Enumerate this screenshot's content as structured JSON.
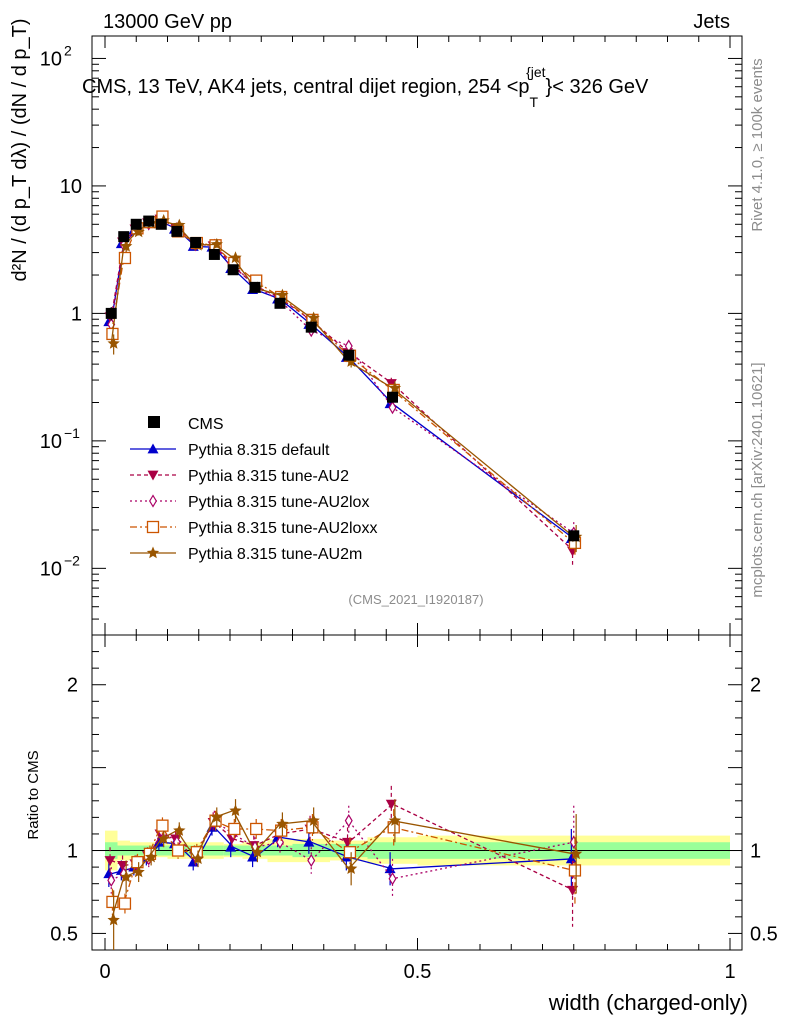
{
  "header": {
    "left": "13000 GeV pp",
    "right": "Jets"
  },
  "side_labels": {
    "rivet": "Rivet 4.1.0, ≥ 100k events",
    "mcplots": "mcplots.cern.ch [arXiv:2401.10621]"
  },
  "chart_data": {
    "type": "line",
    "title": "CMS, 13 TeV, AK4 jets, central dijet region, 254 <p",
    "title_sub": "T",
    "title_sup": "{jet",
    "title_tail": "}< 326 GeV",
    "analysis_tag": "(CMS_2021_I1920187)",
    "xlabel": "width (charged-only)",
    "ylabel_main": "d²N / (d p_T dλ) / (dN / d p_T)",
    "ylabel_ratio": "Ratio to CMS",
    "xlim": [
      0.0,
      1.0
    ],
    "main_ylim_log": [
      0.003,
      150
    ],
    "ratio_ylim": [
      0.4,
      2.3
    ],
    "x_ticks": [
      {
        "value": 0.0,
        "label": "0"
      },
      {
        "value": 0.5,
        "label": "0.5"
      },
      {
        "value": 1.0,
        "label": "1"
      }
    ],
    "main_y_ticks": [
      {
        "value": 100,
        "base": "10",
        "exp": "2"
      },
      {
        "value": 10,
        "base": "10",
        "exp": ""
      },
      {
        "value": 1,
        "base": "1",
        "exp": ""
      },
      {
        "value": 0.1,
        "base": "10",
        "exp": "−1"
      },
      {
        "value": 0.01,
        "base": "10",
        "exp": "−2"
      }
    ],
    "ratio_y_ticks": [
      {
        "value": 0.5,
        "label": "0.5"
      },
      {
        "value": 1,
        "label": "1"
      },
      {
        "value": 2,
        "label": "2"
      }
    ],
    "bin_edges": [
      0.0,
      0.02,
      0.04,
      0.06,
      0.08,
      0.1,
      0.13,
      0.16,
      0.19,
      0.22,
      0.26,
      0.3,
      0.36,
      0.42,
      0.5,
      1.0
    ],
    "x": [
      0.01,
      0.03,
      0.05,
      0.07,
      0.09,
      0.115,
      0.145,
      0.175,
      0.205,
      0.24,
      0.28,
      0.33,
      0.39,
      0.46,
      0.75
    ],
    "cms": {
      "name": "CMS",
      "values": [
        1.0,
        4.0,
        5.0,
        5.3,
        5.0,
        4.4,
        3.6,
        2.9,
        2.2,
        1.6,
        1.2,
        0.78,
        0.47,
        0.22,
        0.018
      ],
      "stat_band": [
        0.05,
        0.03,
        0.03,
        0.03,
        0.03,
        0.03,
        0.03,
        0.03,
        0.03,
        0.03,
        0.03,
        0.04,
        0.04,
        0.05,
        0.05
      ],
      "total_band": [
        0.12,
        0.06,
        0.05,
        0.05,
        0.04,
        0.05,
        0.05,
        0.05,
        0.04,
        0.05,
        0.07,
        0.07,
        0.06,
        0.08,
        0.09
      ]
    },
    "series": [
      {
        "name": "Pythia 8.315 default",
        "color": "#0000cc",
        "dash": "",
        "marker": "triangle-up",
        "ratio": [
          0.86,
          0.88,
          0.9,
          0.96,
          1.05,
          1.04,
          0.93,
          1.14,
          1.02,
          0.96,
          1.08,
          1.05,
          0.96,
          0.89,
          0.95
        ],
        "ratio_err": [
          0.08,
          0.06,
          0.05,
          0.05,
          0.05,
          0.05,
          0.05,
          0.05,
          0.06,
          0.06,
          0.06,
          0.07,
          0.08,
          0.1,
          0.18
        ]
      },
      {
        "name": "Pythia 8.315 tune-AU2",
        "color": "#aa0044",
        "dash": "4,3",
        "marker": "triangle-down",
        "ratio": [
          0.94,
          0.91,
          0.92,
          0.97,
          1.1,
          1.07,
          0.98,
          1.17,
          1.07,
          1.03,
          1.1,
          1.13,
          1.05,
          1.28,
          0.76
        ],
        "ratio_err": [
          0.08,
          0.06,
          0.05,
          0.05,
          0.05,
          0.05,
          0.05,
          0.06,
          0.06,
          0.06,
          0.07,
          0.08,
          0.09,
          0.11,
          0.22
        ]
      },
      {
        "name": "Pythia 8.315 tune-AU2lox",
        "color": "#aa0066",
        "dash": "2,3",
        "marker": "diamond-open",
        "ratio": [
          0.82,
          0.86,
          0.92,
          0.95,
          1.12,
          1.05,
          0.96,
          1.18,
          1.1,
          1.02,
          1.05,
          0.94,
          1.18,
          0.83,
          1.05
        ],
        "ratio_err": [
          0.08,
          0.06,
          0.05,
          0.05,
          0.05,
          0.05,
          0.05,
          0.06,
          0.06,
          0.06,
          0.07,
          0.08,
          0.09,
          0.12,
          0.22
        ]
      },
      {
        "name": "Pythia 8.315 tune-AU2loxx",
        "color": "#cc5500",
        "dash": "7,3,2,3",
        "marker": "square-open",
        "ratio": [
          0.69,
          0.68,
          0.93,
          0.98,
          1.15,
          1.0,
          0.99,
          1.18,
          1.13,
          1.13,
          1.12,
          1.14,
          0.99,
          1.14,
          0.88
        ],
        "ratio_err": [
          0.08,
          0.06,
          0.05,
          0.05,
          0.05,
          0.05,
          0.05,
          0.06,
          0.06,
          0.06,
          0.07,
          0.08,
          0.09,
          0.11,
          0.2
        ]
      },
      {
        "name": "Pythia 8.315 tune-AU2m",
        "color": "#995500",
        "dash": "",
        "marker": "star",
        "ratio": [
          0.58,
          0.84,
          0.87,
          0.96,
          1.07,
          1.12,
          0.95,
          1.2,
          1.24,
          0.99,
          1.16,
          1.18,
          0.89,
          1.18,
          0.98
        ],
        "ratio_err": [
          0.18,
          0.1,
          0.06,
          0.05,
          0.05,
          0.05,
          0.05,
          0.06,
          0.07,
          0.06,
          0.07,
          0.08,
          0.1,
          0.13,
          0.24
        ]
      }
    ]
  }
}
